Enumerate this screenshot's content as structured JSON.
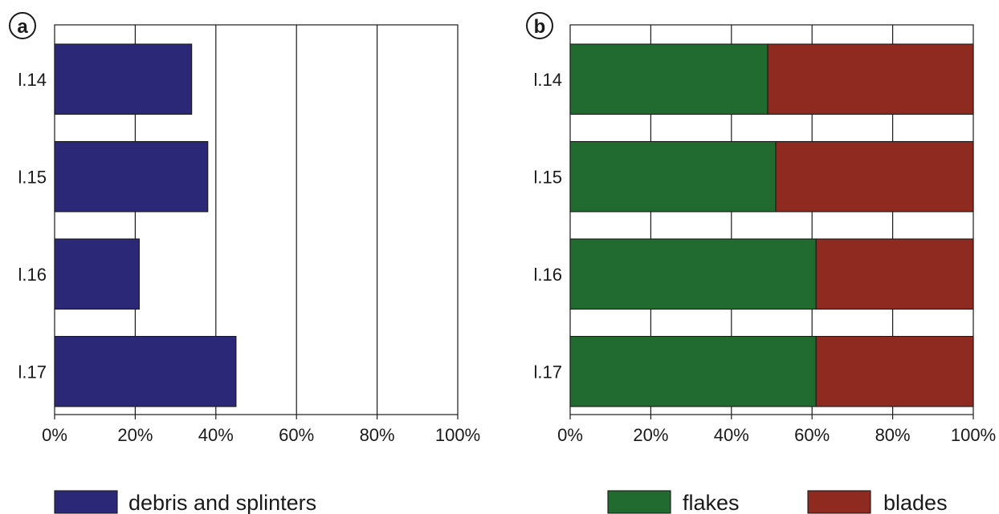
{
  "chart_data": [
    {
      "panel_label": "a",
      "type": "bar",
      "orientation": "horizontal",
      "categories": [
        "l.14",
        "l.15",
        "l.16",
        "l.17"
      ],
      "x_tick_labels": [
        "0%",
        "20%",
        "40%",
        "60%",
        "80%",
        "100%"
      ],
      "xlim": [
        0,
        100
      ],
      "grid": "vertical",
      "legend_position": "bottom",
      "series": [
        {
          "name": "debris and splinters",
          "color": "#2b2878",
          "values": [
            34,
            38,
            21,
            45
          ]
        }
      ]
    },
    {
      "panel_label": "b",
      "type": "bar",
      "orientation": "horizontal",
      "stacked": true,
      "categories": [
        "l.14",
        "l.15",
        "l.16",
        "l.17"
      ],
      "x_tick_labels": [
        "0%",
        "20%",
        "40%",
        "60%",
        "80%",
        "100%"
      ],
      "xlim": [
        0,
        100
      ],
      "grid": "vertical",
      "legend_position": "bottom",
      "series": [
        {
          "name": "flakes",
          "color": "#226b30",
          "values": [
            49,
            51,
            61,
            61
          ]
        },
        {
          "name": "blades",
          "color": "#8e2a1f",
          "values": [
            51,
            49,
            39,
            39
          ]
        }
      ]
    }
  ]
}
